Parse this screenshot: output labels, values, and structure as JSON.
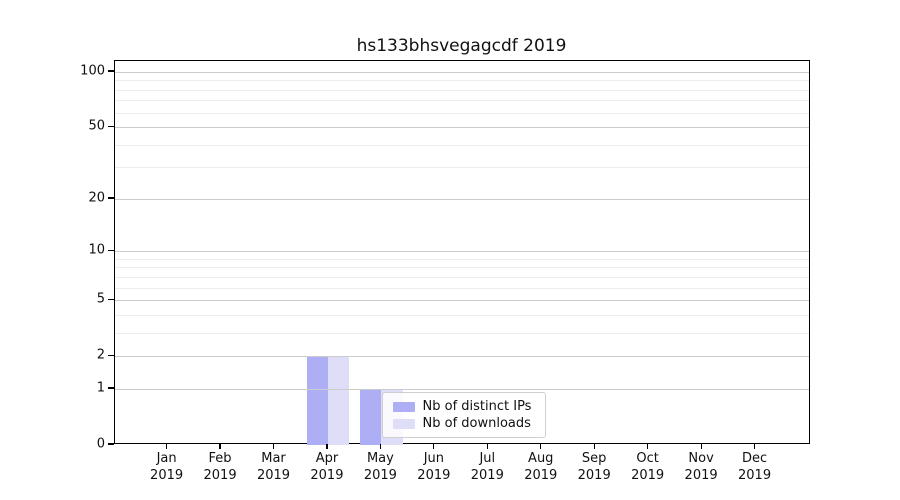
{
  "title": "hs133bhsvegagcdf 2019",
  "chart_data": {
    "type": "bar",
    "title": "hs133bhsvegagcdf 2019",
    "categories": [
      "Jan",
      "Feb",
      "Mar",
      "Apr",
      "May",
      "Jun",
      "Jul",
      "Aug",
      "Sep",
      "Oct",
      "Nov",
      "Dec"
    ],
    "x_tick_year": "2019",
    "series": [
      {
        "name": "Nb of distinct IPs",
        "color": "#aeaef5",
        "values": [
          0,
          0,
          0,
          2,
          1,
          0,
          0,
          0,
          0,
          0,
          0,
          0
        ]
      },
      {
        "name": "Nb of downloads",
        "color": "#dedef9",
        "values": [
          0,
          0,
          0,
          2,
          1,
          0,
          0,
          0,
          0,
          0,
          0,
          0
        ]
      }
    ],
    "xlabel": "",
    "ylabel": "",
    "yscale": "log1p",
    "ylim": [
      0,
      115
    ],
    "y_major_ticks": [
      0,
      1,
      2,
      5,
      10,
      20,
      50,
      100
    ],
    "y_minor_gridlines": [
      3,
      4,
      6,
      7,
      8,
      9,
      30,
      40,
      60,
      70,
      80,
      90
    ],
    "grid": true,
    "legend_position": "inside-lower-center"
  },
  "legend": {
    "items": [
      {
        "label": "Nb of distinct IPs",
        "color": "#aeaef5"
      },
      {
        "label": "Nb of downloads",
        "color": "#dedef9"
      }
    ]
  }
}
